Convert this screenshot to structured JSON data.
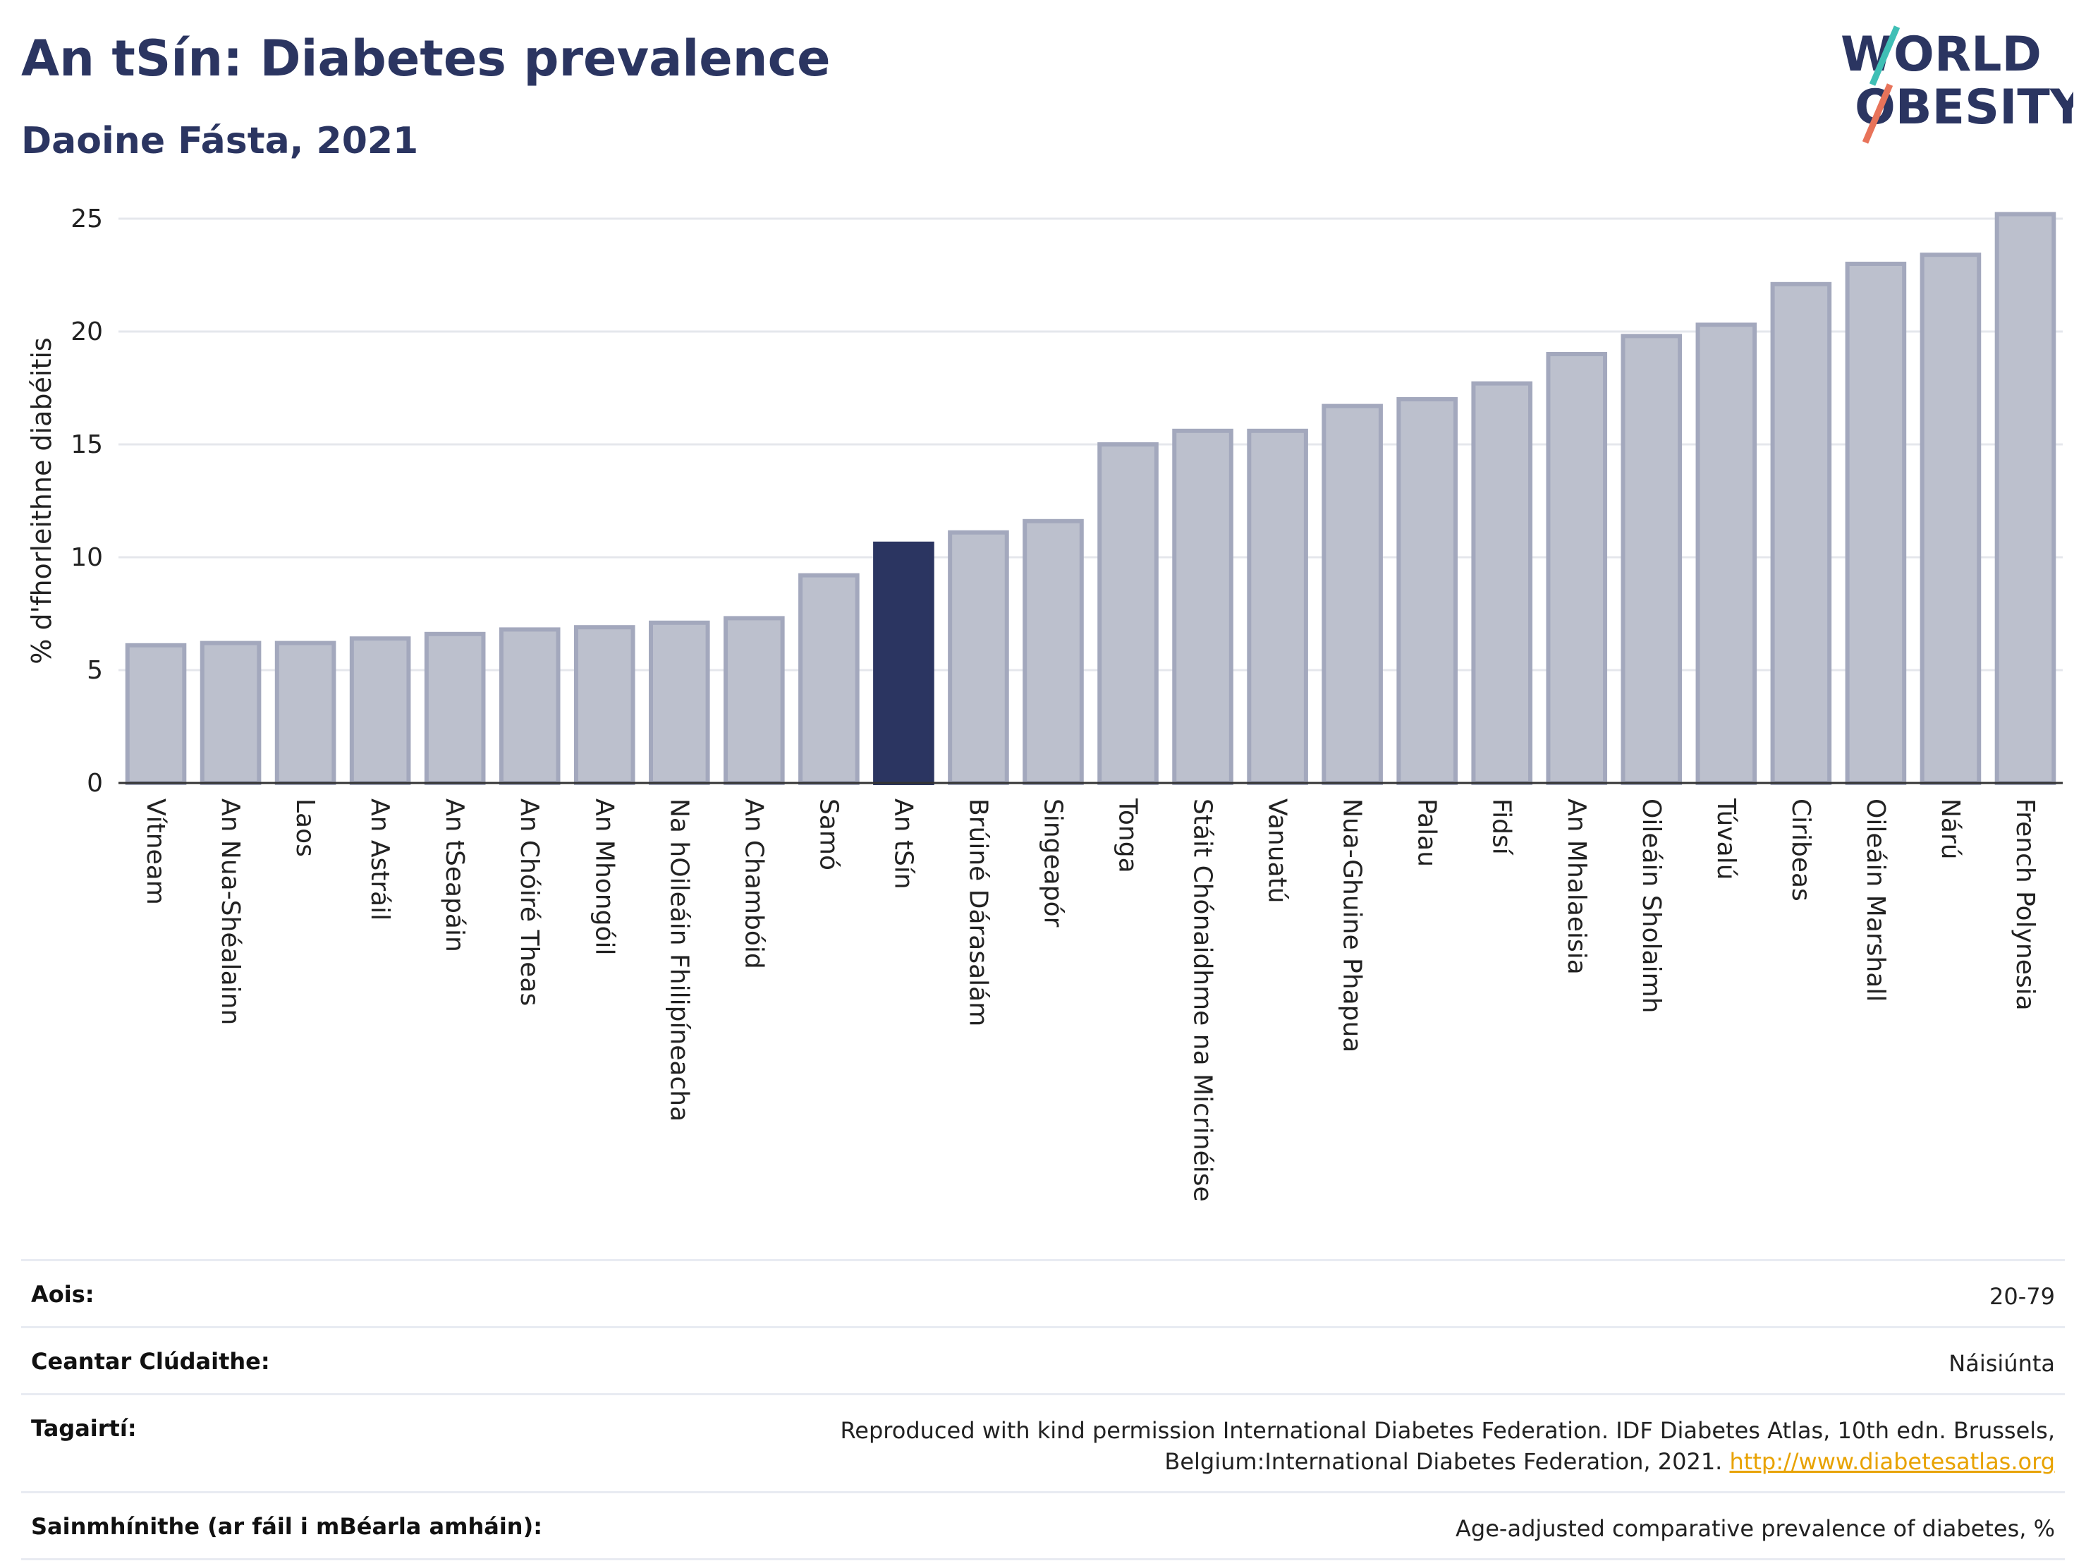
{
  "header": {
    "title": "An tSín: Diabetes prevalence",
    "subtitle": "Daoine Fásta, 2021"
  },
  "logo": {
    "line1": "WORLD",
    "line2": "OBESITY",
    "accent_colors": [
      "#3fbfb5",
      "#e8735a"
    ]
  },
  "colors": {
    "bar_default": "#bcc0cd",
    "bar_border": "#a3a8bd",
    "bar_highlight": "#2b3561",
    "title": "#2b3561",
    "grid": "#e5e7ec",
    "link": "#e8a200"
  },
  "chart_data": {
    "type": "bar",
    "ylabel": "% d'fhorleithne diabéitis",
    "xlabel": "",
    "ylim": [
      0,
      25
    ],
    "yticks": [
      0,
      5,
      10,
      15,
      20,
      25
    ],
    "grid": true,
    "highlight": "An tSín",
    "categories": [
      "Vítneam",
      "An Nua-Shéalainn",
      "Laos",
      "An Astráil",
      "An tSeapáin",
      "An Chóiré Theas",
      "An Mhongóil",
      "Na hOileáin Fhilipíneacha",
      "An Chambóid",
      "Samó",
      "An tSín",
      "Brúiné Dárasalám",
      "Singeapór",
      "Tonga",
      "Stáit Chónaidhme na Micrinéise",
      "Vanuatú",
      "Nua-Ghuine Phapua",
      "Palau",
      "Fidsí",
      "An Mhalaeisia",
      "Oileáin Sholaimh",
      "Túvalú",
      "Ciribeas",
      "Oileáin Marshall",
      "Nárú",
      "French Polynesia"
    ],
    "values": [
      6.1,
      6.2,
      6.2,
      6.4,
      6.6,
      6.8,
      6.9,
      7.1,
      7.3,
      9.2,
      10.6,
      11.1,
      11.6,
      15.0,
      15.6,
      15.6,
      16.7,
      17.0,
      17.7,
      19.0,
      19.8,
      20.3,
      22.1,
      23.0,
      23.4,
      25.2
    ]
  },
  "meta": [
    {
      "key": "Aois:",
      "value": "20-79"
    },
    {
      "key": "Ceantar Clúdaithe:",
      "value": "Náisiúnta"
    },
    {
      "key": "Tagairtí:",
      "value": "Reproduced with kind permission International Diabetes Federation.  IDF Diabetes Atlas, 10th edn. Brussels, Belgium:International Diabetes Federation, 2021.",
      "link": "http://www.diabetesatlas.org"
    },
    {
      "key": "Sainmhínithe (ar fáil i mBéarla amháin):",
      "value": "Age-adjusted comparative prevalence of diabetes, %"
    }
  ]
}
